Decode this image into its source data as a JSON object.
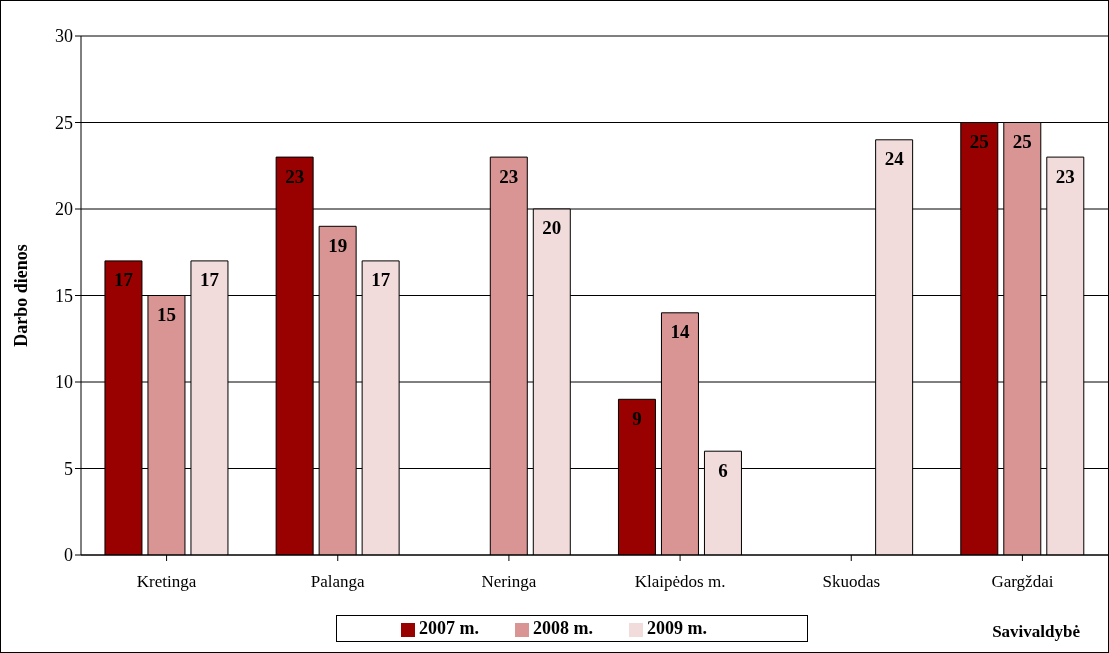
{
  "chart_data": {
    "type": "bar",
    "xlabel": "Savivaldybė",
    "ylabel": "Darbo dienos",
    "categories": [
      "Kretinga",
      "Palanga",
      "Neringa",
      "Klaipėdos m.",
      "Skuodas",
      "Gargždai"
    ],
    "series": [
      {
        "name": "2007 m.",
        "color": "#990000",
        "values": [
          17,
          23,
          null,
          9,
          null,
          25
        ]
      },
      {
        "name": "2008 m.",
        "color": "#d99594",
        "values": [
          15,
          19,
          23,
          14,
          null,
          25
        ]
      },
      {
        "name": "2009 m.",
        "color": "#f2dcdb",
        "values": [
          17,
          17,
          20,
          6,
          24,
          23
        ]
      }
    ],
    "ylim": [
      0,
      30
    ],
    "yticks": [
      0,
      5,
      10,
      15,
      20,
      25,
      30
    ],
    "grid": "y",
    "legend": "bottom",
    "data_labels": true
  }
}
